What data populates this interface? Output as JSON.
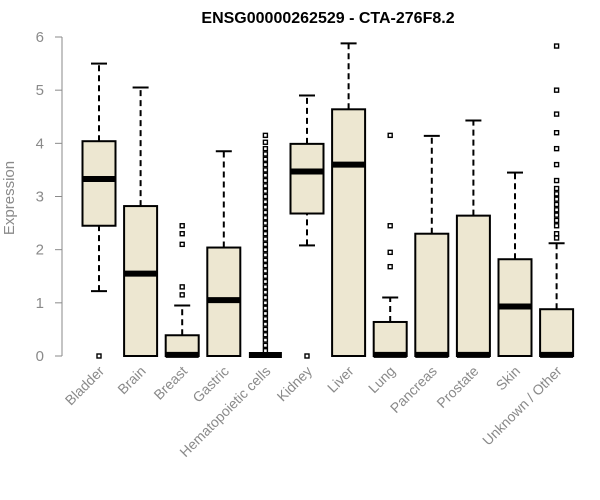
{
  "chart_data": {
    "type": "boxplot",
    "title": "ENSG00000262529 - CTA-276F8.2",
    "xlabel": "",
    "ylabel": "Expression",
    "ylim": [
      0,
      6
    ],
    "yticks": [
      0,
      1,
      2,
      3,
      4,
      5,
      6
    ],
    "box_color": "#ede7d1",
    "line_color": "#000000",
    "axis_color": "#8a8a8a",
    "categories": [
      "Bladder",
      "Brain",
      "Breast",
      "Gastric",
      "Hematopoietic cells",
      "Kidney",
      "Liver",
      "Lung",
      "Pancreas",
      "Prostate",
      "Skin",
      "Unknown / Other"
    ],
    "boxes": [
      {
        "name": "Bladder",
        "whisker_low": 1.22,
        "q1": 2.45,
        "median": 3.33,
        "q3": 4.04,
        "whisker_high": 5.5,
        "outliers": [
          0.0
        ]
      },
      {
        "name": "Brain",
        "whisker_low": 0.0,
        "q1": 0.0,
        "median": 1.55,
        "q3": 2.82,
        "whisker_high": 5.05,
        "outliers": []
      },
      {
        "name": "Breast",
        "whisker_low": 0.0,
        "q1": 0.0,
        "median": 0.02,
        "q3": 0.39,
        "whisker_high": 0.95,
        "outliers": [
          1.15,
          1.3,
          2.1,
          2.3,
          2.45
        ]
      },
      {
        "name": "Gastric",
        "whisker_low": 0.0,
        "q1": 0.0,
        "median": 1.05,
        "q3": 2.04,
        "whisker_high": 3.85,
        "outliers": []
      },
      {
        "name": "Hematopoietic cells",
        "whisker_low": 0.0,
        "q1": 0.0,
        "median": 0.0,
        "q3": 0.0,
        "whisker_high": 0.0,
        "outliers": [
          0.1,
          0.2,
          0.3,
          0.4,
          0.5,
          0.6,
          0.7,
          0.8,
          0.9,
          1.0,
          1.1,
          1.2,
          1.3,
          1.4,
          1.5,
          1.6,
          1.7,
          1.8,
          1.9,
          2.0,
          2.1,
          2.2,
          2.3,
          2.4,
          2.5,
          2.6,
          2.7,
          2.8,
          2.9,
          3.0,
          3.1,
          3.2,
          3.3,
          3.4,
          3.5,
          3.6,
          3.7,
          3.8,
          3.9,
          4.02,
          4.15
        ]
      },
      {
        "name": "Kidney",
        "whisker_low": 2.08,
        "q1": 2.68,
        "median": 3.47,
        "q3": 3.99,
        "whisker_high": 4.9,
        "outliers": [
          0.0
        ]
      },
      {
        "name": "Liver",
        "whisker_low": 0.0,
        "q1": 0.0,
        "median": 3.6,
        "q3": 4.64,
        "whisker_high": 5.88,
        "outliers": []
      },
      {
        "name": "Lung",
        "whisker_low": 0.0,
        "q1": 0.0,
        "median": 0.02,
        "q3": 0.64,
        "whisker_high": 1.1,
        "outliers": [
          1.68,
          1.95,
          2.45,
          4.15
        ]
      },
      {
        "name": "Pancreas",
        "whisker_low": 0.0,
        "q1": 0.0,
        "median": 0.02,
        "q3": 2.3,
        "whisker_high": 4.14,
        "outliers": []
      },
      {
        "name": "Prostate",
        "whisker_low": 0.0,
        "q1": 0.0,
        "median": 0.02,
        "q3": 2.64,
        "whisker_high": 4.43,
        "outliers": []
      },
      {
        "name": "Skin",
        "whisker_low": 0.0,
        "q1": 0.0,
        "median": 0.93,
        "q3": 1.82,
        "whisker_high": 3.45,
        "outliers": []
      },
      {
        "name": "Unknown / Other",
        "whisker_low": 0.0,
        "q1": 0.0,
        "median": 0.02,
        "q3": 0.88,
        "whisker_high": 2.12,
        "outliers": [
          2.22,
          2.3,
          2.45,
          2.55,
          2.65,
          2.75,
          2.85,
          2.95,
          3.05,
          3.15,
          3.3,
          3.6,
          3.9,
          4.2,
          4.55,
          5.0,
          5.83
        ]
      }
    ]
  }
}
